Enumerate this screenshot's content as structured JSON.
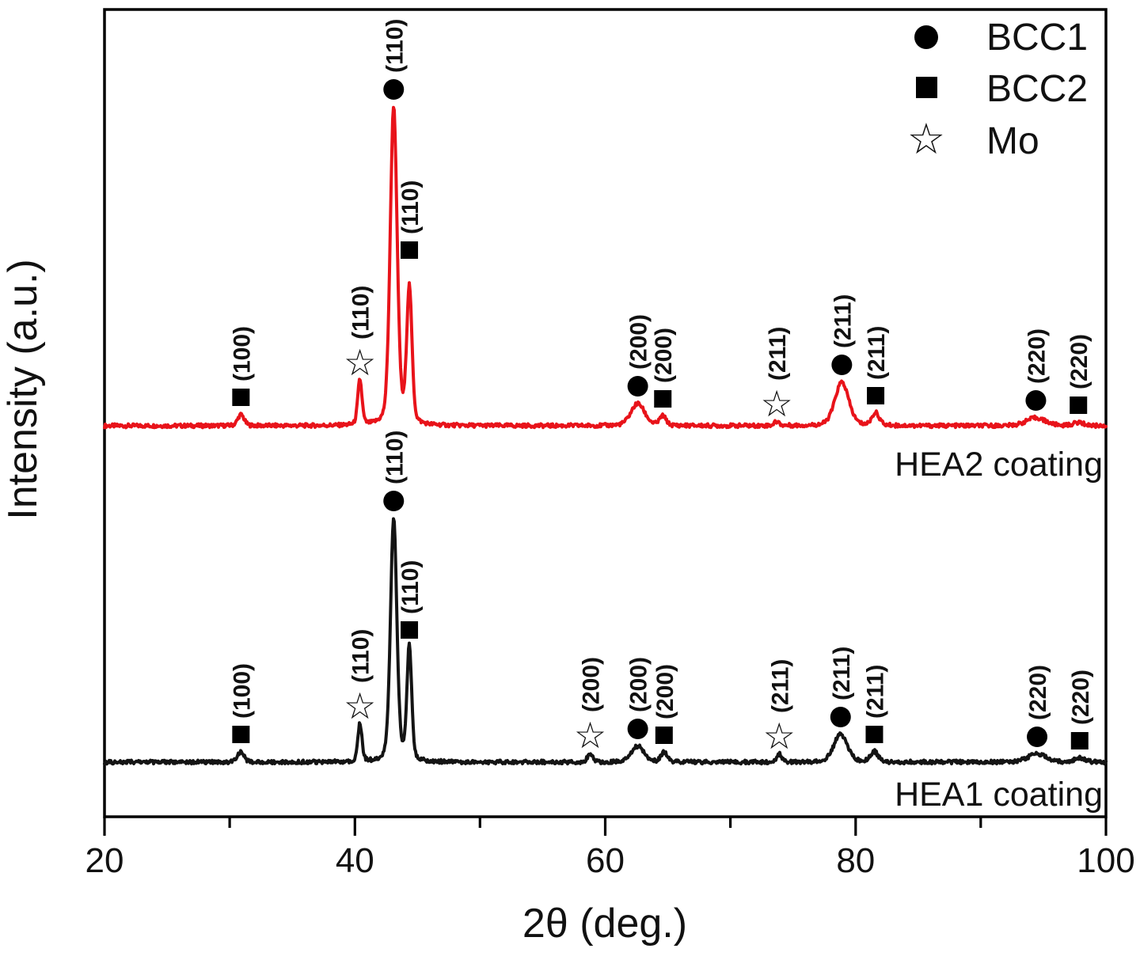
{
  "figure": {
    "background": "#ffffff",
    "axis_color": "#000000"
  },
  "chart_data": {
    "type": "line",
    "title": "",
    "xlabel": "2θ (deg.)",
    "ylabel": "Intensity (a.u.)",
    "xlim": [
      20,
      100
    ],
    "x_major_ticks": [
      20,
      40,
      60,
      80,
      100
    ],
    "x_minor_ticks": [
      30,
      50,
      70,
      90
    ],
    "grid": false,
    "y_axis_numeric": false,
    "legend_position": "top-right-inside",
    "legend": [
      {
        "marker": "circle",
        "marker_style": "filled-black",
        "label": "BCC1"
      },
      {
        "marker": "square",
        "marker_style": "filled-black",
        "label": "BCC2"
      },
      {
        "marker": "star",
        "marker_style": "open-outline",
        "label": "Mo"
      }
    ],
    "phase_markers": {
      "BCC1": "circle",
      "BCC2": "square",
      "Mo": "star"
    },
    "intensity_units": "a.u.",
    "series": [
      {
        "name": "HEA2 coating",
        "color": "#e8131a",
        "baseline_au": 494,
        "noise_amplitude_au": 2.4,
        "peaks": [
          {
            "phase": "BCC2",
            "hkl": "(100)",
            "two_theta": 30.9,
            "height_au": 14,
            "fwhm_deg": 0.6
          },
          {
            "phase": "Mo",
            "hkl": "(110)",
            "two_theta": 40.4,
            "height_au": 57,
            "fwhm_deg": 0.4
          },
          {
            "phase": "BCC1",
            "hkl": "(110)",
            "two_theta": 43.1,
            "height_au": 403,
            "fwhm_deg": 0.65
          },
          {
            "phase": "BCC2",
            "hkl": "(110)",
            "two_theta": 44.35,
            "height_au": 172,
            "fwhm_deg": 0.5,
            "marker_lift_au": 28
          },
          {
            "phase": "BCC1",
            "hkl": "(200)",
            "two_theta": 62.6,
            "height_au": 28,
            "fwhm_deg": 1.3
          },
          {
            "phase": "BCC2",
            "hkl": "(200)",
            "two_theta": 64.6,
            "height_au": 12,
            "fwhm_deg": 0.6
          },
          {
            "phase": "Mo",
            "hkl": "(211)",
            "two_theta": 73.7,
            "height_au": 5,
            "fwhm_deg": 0.5
          },
          {
            "phase": "BCC1",
            "hkl": "(211)",
            "two_theta": 78.9,
            "height_au": 55,
            "fwhm_deg": 1.3
          },
          {
            "phase": "BCC2",
            "hkl": "(211)",
            "two_theta": 81.6,
            "height_au": 16,
            "fwhm_deg": 0.7
          },
          {
            "phase": "BCC1",
            "hkl": "(220)",
            "two_theta": 94.4,
            "height_au": 10,
            "fwhm_deg": 1.8
          },
          {
            "phase": "BCC2",
            "hkl": "(220)",
            "two_theta": 97.8,
            "height_au": 4,
            "fwhm_deg": 1.0
          }
        ]
      },
      {
        "name": "HEA1 coating",
        "color": "#141414",
        "baseline_au": 69,
        "noise_amplitude_au": 2.4,
        "peaks": [
          {
            "phase": "BCC2",
            "hkl": "(100)",
            "two_theta": 30.9,
            "height_au": 13,
            "fwhm_deg": 0.6
          },
          {
            "phase": "Mo",
            "hkl": "(110)",
            "two_theta": 40.4,
            "height_au": 48,
            "fwhm_deg": 0.4
          },
          {
            "phase": "BCC1",
            "hkl": "(110)",
            "two_theta": 43.1,
            "height_au": 308,
            "fwhm_deg": 0.6
          },
          {
            "phase": "BCC2",
            "hkl": "(110)",
            "two_theta": 44.35,
            "height_au": 145,
            "fwhm_deg": 0.45
          },
          {
            "phase": "Mo",
            "hkl": "(200)",
            "two_theta": 58.8,
            "height_au": 11,
            "fwhm_deg": 0.5
          },
          {
            "phase": "BCC1",
            "hkl": "(200)",
            "two_theta": 62.6,
            "height_au": 20,
            "fwhm_deg": 1.2
          },
          {
            "phase": "BCC2",
            "hkl": "(200)",
            "two_theta": 64.7,
            "height_au": 12,
            "fwhm_deg": 0.6
          },
          {
            "phase": "Mo",
            "hkl": "(211)",
            "two_theta": 73.9,
            "height_au": 10,
            "fwhm_deg": 0.5
          },
          {
            "phase": "BCC1",
            "hkl": "(211)",
            "two_theta": 78.8,
            "height_au": 35,
            "fwhm_deg": 1.3
          },
          {
            "phase": "BCC2",
            "hkl": "(211)",
            "two_theta": 81.5,
            "height_au": 13,
            "fwhm_deg": 0.7
          },
          {
            "phase": "BCC1",
            "hkl": "(220)",
            "two_theta": 94.5,
            "height_au": 10,
            "fwhm_deg": 1.8
          },
          {
            "phase": "BCC2",
            "hkl": "(220)",
            "two_theta": 97.9,
            "height_au": 5,
            "fwhm_deg": 1.0
          }
        ]
      }
    ]
  }
}
